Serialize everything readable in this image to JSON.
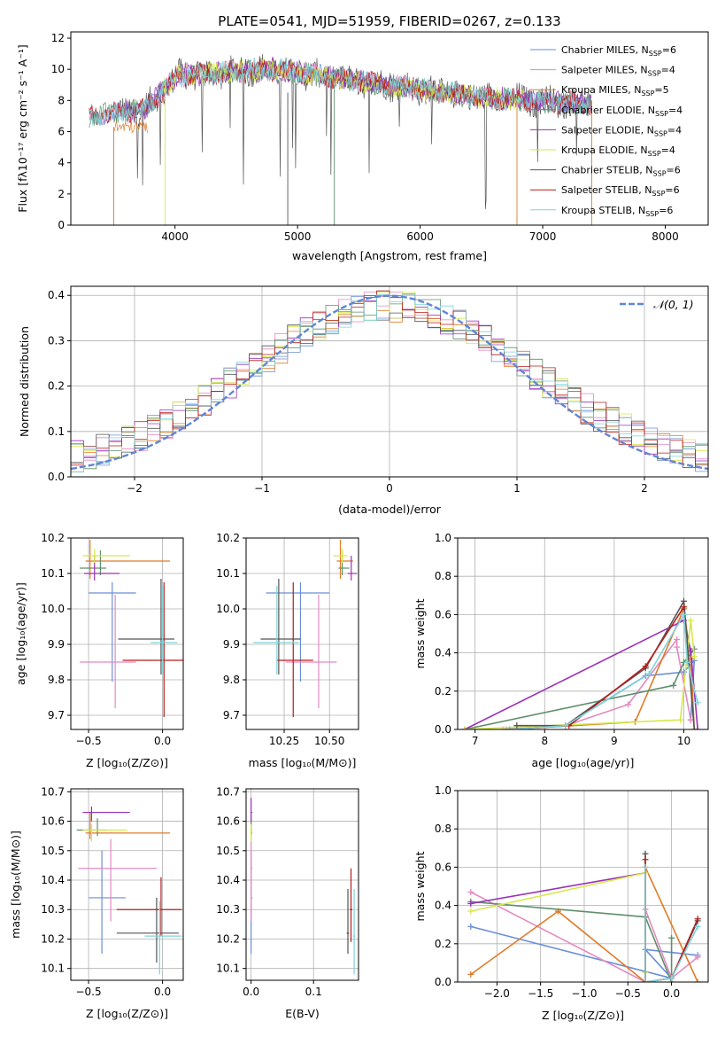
{
  "chart_data": [
    {
      "type": "line",
      "title": "PLATE=0541, MJD=51959, FIBERID=0267, z=0.133",
      "xlabel": "wavelength [Angstrom, rest frame]",
      "ylabel": "Flux [fλ10⁻¹⁷ erg cm⁻² s⁻¹ A⁻¹]",
      "xlim": [
        3150,
        8350
      ],
      "ylim": [
        0,
        12.4
      ],
      "xticks": [
        4000,
        5000,
        6000,
        7000,
        8000
      ],
      "yticks": [
        0,
        2,
        4,
        6,
        8,
        10,
        12
      ],
      "grid": false,
      "legend": "top-right",
      "series": [
        {
          "name": "Chabrier MILES, N",
          "sub": "SSP",
          "suffix": "=6",
          "color": "#6a8fd8"
        },
        {
          "name": "Salpeter MILES, N",
          "sub": "SSP",
          "suffix": "=4",
          "color": "#e38ac2"
        },
        {
          "name": "Kroupa MILES, N",
          "sub": "SSP",
          "suffix": "=5",
          "color": "#e07b28"
        },
        {
          "name": "Chabrier ELODIE, N",
          "sub": "SSP",
          "suffix": "=4",
          "color": "#5e8f6a"
        },
        {
          "name": "Salpeter ELODIE, N",
          "sub": "SSP",
          "suffix": "=4",
          "color": "#9b30b8"
        },
        {
          "name": "Kroupa ELODIE, N",
          "sub": "SSP",
          "suffix": "=4",
          "color": "#d6e84a"
        },
        {
          "name": "Chabrier STELIB, N",
          "sub": "SSP",
          "suffix": "=6",
          "color": "#555555"
        },
        {
          "name": "Salpeter STELIB, N",
          "sub": "SSP",
          "suffix": "=6",
          "color": "#b81c1c"
        },
        {
          "name": "Kroupa STELIB, N",
          "sub": "SSP",
          "suffix": "=6",
          "color": "#7fd3d8"
        }
      ]
    },
    {
      "type": "histogram",
      "xlabel": "(data-model)/error",
      "ylabel": "Normed distribution",
      "xlim": [
        -2.5,
        2.5
      ],
      "ylim": [
        0,
        0.42
      ],
      "xticks": [
        -2,
        -1,
        0,
        1,
        2
      ],
      "yticks": [
        0.0,
        0.1,
        0.2,
        0.3,
        0.4
      ],
      "grid": true,
      "legend": "top-right",
      "reference": {
        "name": "𝒩(0, 1)",
        "color": "#5f86d6",
        "mean": 0,
        "sigma": 1
      }
    },
    {
      "type": "errorbar",
      "xlabel": "Z [log₁₀(Z/Z⊙)]",
      "ylabel": "age  [log₁₀(age/yr)]",
      "xlim": [
        -0.62,
        0.14
      ],
      "ylim": [
        9.66,
        10.2
      ],
      "xticks": [
        -0.5,
        0.0
      ],
      "yticks": [
        9.7,
        9.8,
        9.9,
        10.0,
        10.1,
        10.2
      ],
      "points": [
        {
          "x": -0.34,
          "xerr": [
            0.16,
            0.16
          ],
          "y": 10.045,
          "yerr": [
            0.25,
            0.03
          ],
          "color": "#6a8fd8"
        },
        {
          "x": -0.32,
          "xerr": [
            0.24,
            0.14
          ],
          "y": 9.85,
          "yerr": [
            0.13,
            0.19
          ],
          "color": "#e38ac2"
        },
        {
          "x": -0.49,
          "xerr": [
            0.03,
            0.54
          ],
          "y": 10.135,
          "yerr": [
            0.05,
            0.06
          ],
          "color": "#e07b28"
        },
        {
          "x": -0.42,
          "xerr": [
            0.14,
            0.04
          ],
          "y": 10.115,
          "yerr": [
            0.02,
            0.05
          ],
          "color": "#5e8f6a"
        },
        {
          "x": -0.46,
          "xerr": [
            0.07,
            0.17
          ],
          "y": 10.1,
          "yerr": [
            0.02,
            0.05
          ],
          "color": "#9b30b8"
        },
        {
          "x": -0.46,
          "xerr": [
            0.08,
            0.24
          ],
          "y": 10.15,
          "yerr": [
            0.02,
            0.02
          ],
          "color": "#d6e84a"
        },
        {
          "x": -0.01,
          "xerr": [
            0.29,
            0.09
          ],
          "y": 9.915,
          "yerr": [
            0.1,
            0.17
          ],
          "color": "#555555"
        },
        {
          "x": 0.01,
          "xerr": [
            0.28,
            0.16
          ],
          "y": 9.855,
          "yerr": [
            0.16,
            0.22
          ],
          "color": "#b81c1c"
        },
        {
          "x": 0.0,
          "xerr": [
            0.08,
            0.1
          ],
          "y": 9.905,
          "yerr": [
            0.09,
            0.16
          ],
          "color": "#7fd3d8"
        }
      ]
    },
    {
      "type": "errorbar",
      "xlabel": "mass [log₁₀(M/M⊙)]",
      "xlim": [
        10.04,
        10.66
      ],
      "ylim": [
        9.66,
        10.2
      ],
      "xticks": [
        10.25,
        10.5
      ],
      "yticks": [
        9.7,
        9.8,
        9.9,
        10.0,
        10.1,
        10.2
      ],
      "points": [
        {
          "x": 10.34,
          "xerr": [
            0.19,
            0.16
          ],
          "y": 10.045,
          "yerr": [
            0.25,
            0.03
          ],
          "color": "#6a8fd8"
        },
        {
          "x": 10.44,
          "xerr": [
            0.18,
            0.1
          ],
          "y": 9.85,
          "yerr": [
            0.13,
            0.19
          ],
          "color": "#e38ac2"
        },
        {
          "x": 10.56,
          "xerr": [
            0.02,
            0.07
          ],
          "y": 10.135,
          "yerr": [
            0.05,
            0.06
          ],
          "color": "#e07b28"
        },
        {
          "x": 10.57,
          "xerr": [
            0.02,
            0.04
          ],
          "y": 10.115,
          "yerr": [
            0.02,
            0.05
          ],
          "color": "#5e8f6a"
        },
        {
          "x": 10.62,
          "xerr": [
            0.02,
            0.03
          ],
          "y": 10.1,
          "yerr": [
            0.02,
            0.05
          ],
          "color": "#9b30b8"
        },
        {
          "x": 10.57,
          "xerr": [
            0.05,
            0.03
          ],
          "y": 10.15,
          "yerr": [
            0.02,
            0.02
          ],
          "color": "#d6e84a"
        },
        {
          "x": 10.22,
          "xerr": [
            0.1,
            0.12
          ],
          "y": 9.915,
          "yerr": [
            0.1,
            0.17
          ],
          "color": "#555555"
        },
        {
          "x": 10.3,
          "xerr": [
            0.09,
            0.11
          ],
          "y": 9.855,
          "yerr": [
            0.16,
            0.22
          ],
          "color": "#b81c1c"
        },
        {
          "x": 10.21,
          "xerr": [
            0.13,
            0.12
          ],
          "y": 9.905,
          "yerr": [
            0.09,
            0.16
          ],
          "color": "#7fd3d8"
        }
      ]
    },
    {
      "type": "line",
      "xlabel": "age  [log₁₀(age/yr)]",
      "ylabel": "mass weight",
      "xlim": [
        6.75,
        10.35
      ],
      "ylim": [
        0,
        1.0
      ],
      "xticks": [
        7,
        8,
        9,
        10
      ],
      "yticks": [
        0.0,
        0.2,
        0.4,
        0.6,
        0.8,
        1.0
      ],
      "grid": true,
      "series": [
        {
          "color": "#6a8fd8",
          "x": [
            7.45,
            8.3,
            9.45,
            10.0,
            10.15,
            10.1
          ],
          "y": [
            0.0,
            0.02,
            0.28,
            0.3,
            0.36,
            0.05
          ]
        },
        {
          "color": "#e38ac2",
          "x": [
            7.4,
            8.3,
            9.2,
            9.9,
            9.9,
            10.1
          ],
          "y": [
            0.0,
            0.02,
            0.13,
            0.47,
            0.43,
            0.05
          ]
        },
        {
          "color": "#e07b28",
          "x": [
            7.5,
            9.3,
            10.0,
            10.1,
            10.15
          ],
          "y": [
            0.0,
            0.04,
            0.63,
            0.37,
            0.0
          ]
        },
        {
          "color": "#5e8f6a",
          "x": [
            6.85,
            9.85,
            10.0,
            10.15
          ],
          "y": [
            0.0,
            0.23,
            0.35,
            0.42
          ]
        },
        {
          "color": "#9b30b8",
          "x": [
            6.85,
            10.0,
            10.1,
            10.2
          ],
          "y": [
            0.0,
            0.57,
            0.41,
            0.0
          ]
        },
        {
          "color": "#d6e84a",
          "x": [
            6.85,
            9.95,
            10.1,
            10.15
          ],
          "y": [
            0.0,
            0.05,
            0.57,
            0.38
          ]
        },
        {
          "color": "#555555",
          "x": [
            7.6,
            8.3,
            9.45,
            10.0,
            10.15
          ],
          "y": [
            0.02,
            0.02,
            0.32,
            0.67,
            0.0
          ]
        },
        {
          "color": "#b81c1c",
          "x": [
            7.5,
            8.35,
            9.45,
            10.0
          ],
          "y": [
            0.0,
            0.02,
            0.33,
            0.64
          ]
        },
        {
          "color": "#7fd3d8",
          "x": [
            7.5,
            8.3,
            9.5,
            10.0,
            10.05,
            10.2
          ],
          "y": [
            0.0,
            0.02,
            0.29,
            0.6,
            0.35,
            0.14
          ]
        }
      ]
    },
    {
      "type": "errorbar",
      "xlabel": "Z [log₁₀(Z/Z⊙)]",
      "ylabel": "mass [log₁₀(M/M⊙)]",
      "xlim": [
        -0.62,
        0.14
      ],
      "ylim": [
        10.06,
        10.71
      ],
      "xticks": [
        -0.5,
        0.0
      ],
      "yticks": [
        10.1,
        10.2,
        10.3,
        10.4,
        10.5,
        10.6,
        10.7
      ],
      "points": [
        {
          "x": -0.41,
          "xerr": [
            0.09,
            0.16
          ],
          "y": 10.34,
          "yerr": [
            0.19,
            0.16
          ],
          "color": "#6a8fd8"
        },
        {
          "x": -0.35,
          "xerr": [
            0.22,
            0.31
          ],
          "y": 10.44,
          "yerr": [
            0.18,
            0.1
          ],
          "color": "#e38ac2"
        },
        {
          "x": -0.49,
          "xerr": [
            0.03,
            0.54
          ],
          "y": 10.56,
          "yerr": [
            0.02,
            0.07
          ],
          "color": "#e07b28"
        },
        {
          "x": -0.44,
          "xerr": [
            0.14,
            0.06
          ],
          "y": 10.57,
          "yerr": [
            0.02,
            0.04
          ],
          "color": "#5e8f6a"
        },
        {
          "x": -0.48,
          "xerr": [
            0.06,
            0.26
          ],
          "y": 10.63,
          "yerr": [
            0.03,
            0.02
          ],
          "color": "#9b30b8"
        },
        {
          "x": -0.48,
          "xerr": [
            0.06,
            0.24
          ],
          "y": 10.57,
          "yerr": [
            0.04,
            0.02
          ],
          "color": "#d6e84a"
        },
        {
          "x": -0.04,
          "xerr": [
            0.27,
            0.15
          ],
          "y": 10.22,
          "yerr": [
            0.1,
            0.12
          ],
          "color": "#555555"
        },
        {
          "x": -0.01,
          "xerr": [
            0.3,
            0.14
          ],
          "y": 10.3,
          "yerr": [
            0.09,
            0.11
          ],
          "color": "#b81c1c"
        },
        {
          "x": -0.02,
          "xerr": [
            0.1,
            0.15
          ],
          "y": 10.21,
          "yerr": [
            0.13,
            0.12
          ],
          "color": "#7fd3d8"
        }
      ]
    },
    {
      "type": "errorbar",
      "xlabel": "E(B-V)",
      "xlim": [
        -0.008,
        0.172
      ],
      "ylim": [
        10.06,
        10.71
      ],
      "xticks": [
        0.0,
        0.1
      ],
      "yticks": [
        10.1,
        10.2,
        10.3,
        10.4,
        10.5,
        10.6,
        10.7
      ],
      "points": [
        {
          "x": 0.0,
          "xerr": [
            0,
            0.002
          ],
          "y": 10.34,
          "yerr": [
            0.19,
            0.16
          ],
          "color": "#6a8fd8"
        },
        {
          "x": 0.0,
          "xerr": [
            0,
            0.002
          ],
          "y": 10.44,
          "yerr": [
            0.18,
            0.1
          ],
          "color": "#e38ac2"
        },
        {
          "x": 0.0,
          "xerr": [
            0,
            0.002
          ],
          "y": 10.56,
          "yerr": [
            0.02,
            0.07
          ],
          "color": "#e07b28"
        },
        {
          "x": 0.0,
          "xerr": [
            0,
            0.002
          ],
          "y": 10.57,
          "yerr": [
            0.02,
            0.04
          ],
          "color": "#5e8f6a"
        },
        {
          "x": 0.0,
          "xerr": [
            0,
            0.002
          ],
          "y": 10.63,
          "yerr": [
            0.03,
            0.05
          ],
          "color": "#9b30b8"
        },
        {
          "x": 0.0,
          "xerr": [
            0,
            0.002
          ],
          "y": 10.57,
          "yerr": [
            0.04,
            0.02
          ],
          "color": "#d6e84a"
        },
        {
          "x": 0.155,
          "xerr": [
            0.002,
            0.002
          ],
          "y": 10.22,
          "yerr": [
            0.07,
            0.15
          ],
          "color": "#555555"
        },
        {
          "x": 0.16,
          "xerr": [
            0.002,
            0.002
          ],
          "y": 10.3,
          "yerr": [
            0.11,
            0.14
          ],
          "color": "#b81c1c"
        },
        {
          "x": 0.165,
          "xerr": [
            0.002,
            0.002
          ],
          "y": 10.21,
          "yerr": [
            0.13,
            0.16
          ],
          "color": "#7fd3d8"
        }
      ]
    },
    {
      "type": "line",
      "xlabel": "Z [log₁₀(Z/Z⊙)]",
      "ylabel": "mass weight",
      "xlim": [
        -2.45,
        0.42
      ],
      "ylim": [
        0,
        1.0
      ],
      "xticks": [
        -2.0,
        -1.5,
        -1.0,
        -0.5,
        0.0
      ],
      "yticks": [
        0.0,
        0.2,
        0.4,
        0.6,
        0.8,
        1.0
      ],
      "grid": true,
      "series": [
        {
          "color": "#6a8fd8",
          "x": [
            -2.3,
            0.0,
            -0.3,
            0.3
          ],
          "y": [
            0.29,
            0.02,
            0.17,
            0.14
          ]
        },
        {
          "color": "#e38ac2",
          "x": [
            -2.3,
            -0.3,
            -0.3,
            0.0,
            0.3
          ],
          "y": [
            0.47,
            0.0,
            0.38,
            0.02,
            0.13
          ]
        },
        {
          "color": "#e07b28",
          "x": [
            -2.3,
            -1.3,
            -0.3,
            -0.3,
            0.3
          ],
          "y": [
            0.04,
            0.37,
            0.0,
            0.6,
            0.0
          ]
        },
        {
          "color": "#5e8f6a",
          "x": [
            -2.3,
            -0.3,
            0.0,
            0.0
          ],
          "y": [
            0.42,
            0.34,
            0.0,
            0.23
          ]
        },
        {
          "color": "#9b30b8",
          "x": [
            -2.3,
            -0.3,
            -0.3
          ],
          "y": [
            0.41,
            0.57,
            0.0
          ]
        },
        {
          "color": "#d6e84a",
          "x": [
            -2.3,
            -0.3,
            -0.3
          ],
          "y": [
            0.37,
            0.57,
            0.05
          ]
        },
        {
          "color": "#555555",
          "x": [
            -0.3,
            -0.3,
            0.0,
            0.3
          ],
          "y": [
            0.67,
            0.0,
            0.02,
            0.32
          ]
        },
        {
          "color": "#b81c1c",
          "x": [
            -0.3,
            -0.3,
            0.0,
            0.3
          ],
          "y": [
            0.64,
            0.0,
            0.02,
            0.33
          ]
        },
        {
          "color": "#7fd3d8",
          "x": [
            -0.3,
            -0.3,
            0.0,
            0.3
          ],
          "y": [
            0.6,
            0.0,
            0.02,
            0.29
          ]
        }
      ]
    }
  ]
}
